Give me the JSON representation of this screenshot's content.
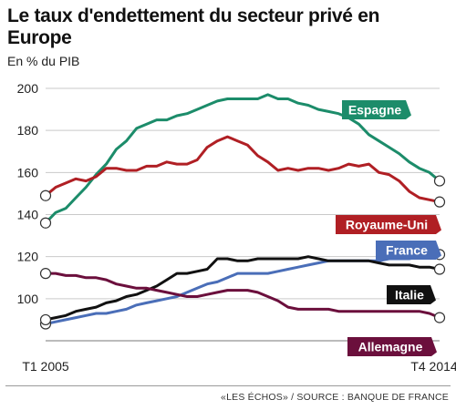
{
  "header": {
    "title": "Le taux d'endettement du secteur privé en Europe",
    "subtitle": "En % du PIB"
  },
  "footer": {
    "source": "«LES ÉCHOS» / SOURCE : BANQUE DE FRANCE"
  },
  "chart_data": {
    "type": "line",
    "title": "Le taux d'endettement du secteur privé en Europe",
    "ylabel": "En % du PIB",
    "ylim": [
      80,
      200
    ],
    "yticks": [
      80,
      100,
      120,
      140,
      160,
      180,
      200
    ],
    "x_tick_labels": [
      "T1 2005",
      "T4 2014"
    ],
    "x": [
      "T1 2005",
      "T2 2005",
      "T3 2005",
      "T4 2005",
      "T1 2006",
      "T2 2006",
      "T3 2006",
      "T4 2006",
      "T1 2007",
      "T2 2007",
      "T3 2007",
      "T4 2007",
      "T1 2008",
      "T2 2008",
      "T3 2008",
      "T4 2008",
      "T1 2009",
      "T2 2009",
      "T3 2009",
      "T4 2009",
      "T1 2010",
      "T2 2010",
      "T3 2010",
      "T4 2010",
      "T1 2011",
      "T2 2011",
      "T3 2011",
      "T4 2011",
      "T1 2012",
      "T2 2012",
      "T3 2012",
      "T4 2012",
      "T1 2013",
      "T2 2013",
      "T3 2013",
      "T4 2013",
      "T1 2014",
      "T2 2014",
      "T3 2014",
      "T4 2014"
    ],
    "grid": true,
    "series": [
      {
        "name": "Espagne",
        "color": "#1c8c6a",
        "values": [
          136,
          141,
          143,
          148,
          153,
          159,
          164,
          171,
          175,
          181,
          183,
          185,
          185,
          187,
          188,
          190,
          192,
          194,
          195,
          195,
          195,
          195,
          197,
          195,
          195,
          193,
          192,
          190,
          189,
          188,
          186,
          183,
          178,
          175,
          172,
          169,
          165,
          162,
          160,
          156
        ]
      },
      {
        "name": "Royaume-Uni",
        "color": "#b01f24",
        "values": [
          149,
          153,
          155,
          157,
          156,
          158,
          162,
          162,
          161,
          161,
          163,
          163,
          165,
          164,
          164,
          166,
          172,
          175,
          177,
          175,
          173,
          168,
          165,
          161,
          162,
          161,
          162,
          162,
          161,
          162,
          164,
          163,
          164,
          160,
          159,
          156,
          151,
          148,
          147,
          146
        ]
      },
      {
        "name": "France",
        "color": "#4a6eb8",
        "values": [
          88,
          89,
          90,
          91,
          92,
          93,
          93,
          94,
          95,
          97,
          98,
          99,
          100,
          101,
          103,
          105,
          107,
          108,
          110,
          112,
          112,
          112,
          112,
          113,
          114,
          115,
          116,
          117,
          118,
          118,
          118,
          118,
          118,
          118,
          119,
          119,
          119,
          120,
          121,
          121
        ]
      },
      {
        "name": "Italie",
        "color": "#111111",
        "values": [
          90,
          91,
          92,
          94,
          95,
          96,
          98,
          99,
          101,
          102,
          104,
          106,
          109,
          112,
          112,
          113,
          114,
          119,
          119,
          118,
          118,
          119,
          119,
          119,
          119,
          119,
          120,
          119,
          118,
          118,
          118,
          118,
          118,
          117,
          116,
          116,
          116,
          115,
          115,
          114
        ]
      },
      {
        "name": "Allemagne",
        "color": "#6b0f3c",
        "values": [
          112,
          112,
          111,
          111,
          110,
          110,
          109,
          107,
          106,
          105,
          105,
          104,
          103,
          102,
          101,
          101,
          102,
          103,
          104,
          104,
          104,
          103,
          101,
          99,
          96,
          95,
          95,
          95,
          95,
          94,
          94,
          94,
          94,
          94,
          94,
          94,
          94,
          94,
          93,
          91
        ]
      }
    ]
  }
}
